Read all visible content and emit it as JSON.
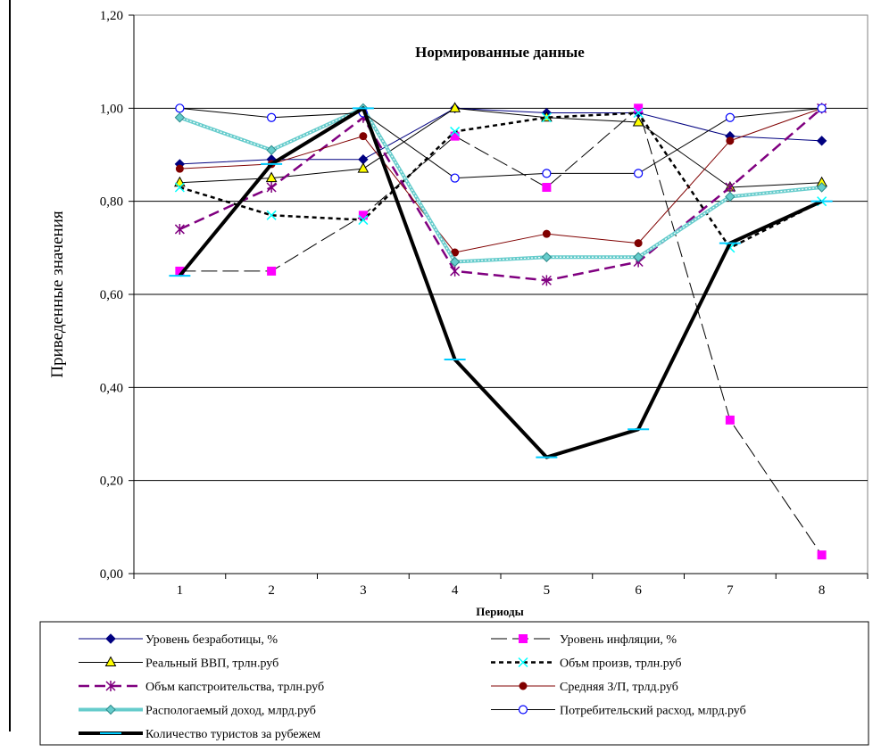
{
  "chart_data": {
    "type": "line",
    "title": "Нормированные данные",
    "xlabel": "Периоды",
    "ylabel": "Приведенные значения",
    "categories": [
      "1",
      "2",
      "3",
      "4",
      "5",
      "6",
      "7",
      "8"
    ],
    "ylim": [
      0,
      1.2
    ],
    "yticks": [
      "0,00",
      "0,20",
      "0,40",
      "0,60",
      "0,80",
      "1,00",
      "1,20"
    ],
    "grid": true,
    "legend_position": "bottom",
    "series": [
      {
        "name": "Уровень безработицы, %",
        "values": [
          0.88,
          0.89,
          0.89,
          1.0,
          0.99,
          0.99,
          0.94,
          0.93
        ],
        "color": "#000080",
        "marker": "diamond",
        "dash": "",
        "width": 1
      },
      {
        "name": "Уровень инфляции, %",
        "values": [
          0.65,
          0.65,
          0.77,
          0.94,
          0.83,
          1.0,
          0.33,
          0.04
        ],
        "color": "#000000",
        "marker": "square",
        "markerColor": "#ff00ff",
        "dash": "18 6",
        "width": 1
      },
      {
        "name": "Реальный ВВП, трлн.руб",
        "values": [
          0.84,
          0.85,
          0.87,
          1.0,
          0.98,
          0.97,
          0.83,
          0.84
        ],
        "color": "#000000",
        "marker": "triangle",
        "markerColor": "#ffff00",
        "dash": "",
        "width": 1
      },
      {
        "name": "Объм произв, трлн.руб",
        "values": [
          0.83,
          0.77,
          0.76,
          0.95,
          0.98,
          0.99,
          0.7,
          0.8
        ],
        "color": "#000000",
        "marker": "x",
        "markerColor": "#00ffff",
        "dash": "5 4",
        "width": 2.5
      },
      {
        "name": "Объм капстроительства, трлн.руб",
        "values": [
          0.74,
          0.83,
          0.98,
          0.65,
          0.63,
          0.67,
          0.83,
          1.0
        ],
        "color": "#800080",
        "marker": "star",
        "dash": "12 6",
        "width": 2.5
      },
      {
        "name": "Средняя З/П, трлд.руб",
        "values": [
          0.87,
          0.88,
          0.94,
          0.69,
          0.73,
          0.71,
          0.93,
          1.0
        ],
        "color": "#800000",
        "marker": "circle",
        "dash": "",
        "width": 1
      },
      {
        "name": "Распологаемый доход, млрд.руб",
        "values": [
          0.98,
          0.91,
          1.0,
          0.67,
          0.68,
          0.68,
          0.81,
          0.83
        ],
        "color": "#66cccc",
        "marker": "diamond",
        "markerColor": "#66cccc",
        "dash": "",
        "width": 4
      },
      {
        "name": "Потребительский расход, млрд.руб",
        "values": [
          1.0,
          0.98,
          0.99,
          0.85,
          0.86,
          0.86,
          0.98,
          1.0
        ],
        "color": "#000000",
        "marker": "ocircle",
        "markerColor": "#0000ff",
        "dash": "",
        "width": 1
      },
      {
        "name": "Количество туристов за рубежем",
        "values": [
          0.64,
          0.88,
          1.0,
          0.46,
          0.25,
          0.31,
          0.71,
          0.8
        ],
        "color": "#000000",
        "marker": "dash",
        "markerColor": "#00ccff",
        "dash": "",
        "width": 4
      }
    ]
  }
}
